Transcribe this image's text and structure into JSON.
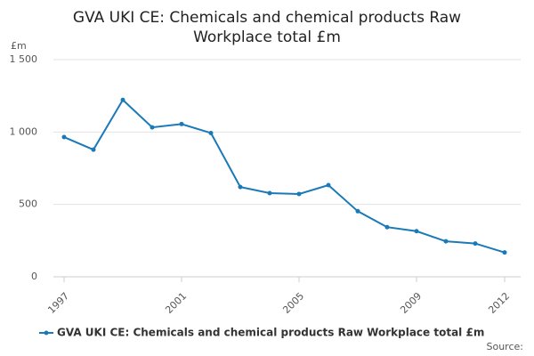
{
  "chart_data": {
    "type": "line",
    "title": "GVA UKI CE: Chemicals and chemical products Raw Workplace total £m",
    "y_unit": "£m",
    "source": "Source:",
    "x": [
      1997,
      1998,
      1999,
      2000,
      2001,
      2002,
      2003,
      2004,
      2005,
      2006,
      2007,
      2008,
      2009,
      2010,
      2011,
      2012
    ],
    "series": [
      {
        "name": "GVA UKI CE: Chemicals and chemical products Raw Workplace total £m",
        "color": "#1a7ab8",
        "values": [
          965,
          878,
          1222,
          1032,
          1055,
          993,
          620,
          578,
          572,
          633,
          453,
          343,
          315,
          245,
          230,
          168
        ]
      }
    ],
    "xlim": [
      1997,
      2012
    ],
    "xticks": [
      1997,
      2001,
      2005,
      2009,
      2012
    ],
    "ylim": [
      0,
      1500
    ],
    "yticks": [
      0,
      500,
      {
        "value": 1000,
        "label": "1 000"
      },
      {
        "value": 1500,
        "label": "1 500"
      }
    ],
    "grid": true
  }
}
